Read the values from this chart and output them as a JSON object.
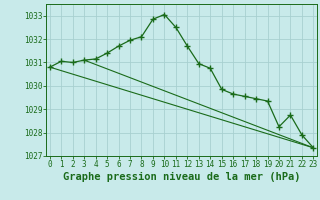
{
  "title": "Graphe pression niveau de la mer (hPa)",
  "background_color": "#c8eaea",
  "grid_color": "#a8d0d0",
  "line_color": "#1a6b1a",
  "ylim": [
    1027,
    1033.5
  ],
  "xlim": [
    -0.3,
    23.3
  ],
  "yticks": [
    1027,
    1028,
    1029,
    1030,
    1031,
    1032,
    1033
  ],
  "xticks": [
    0,
    1,
    2,
    3,
    4,
    5,
    6,
    7,
    8,
    9,
    10,
    11,
    12,
    13,
    14,
    15,
    16,
    17,
    18,
    19,
    20,
    21,
    22,
    23
  ],
  "series1_x": [
    0,
    1,
    2,
    3,
    4,
    5,
    6,
    7,
    8,
    9,
    10,
    11,
    12,
    13,
    14,
    15,
    16,
    17,
    18,
    19,
    20,
    21,
    22,
    23
  ],
  "series1_y": [
    1030.8,
    1031.05,
    1031.0,
    1031.1,
    1031.15,
    1031.4,
    1031.7,
    1031.95,
    1032.1,
    1032.85,
    1033.05,
    1032.5,
    1031.7,
    1030.95,
    1030.75,
    1029.85,
    1029.65,
    1029.55,
    1029.45,
    1029.35,
    1028.25,
    1028.75,
    1027.9,
    1027.35
  ],
  "line1_x": [
    0,
    23
  ],
  "line1_y": [
    1030.8,
    1027.35
  ],
  "line2_x": [
    3,
    23
  ],
  "line2_y": [
    1031.1,
    1027.35
  ],
  "tick_fontsize": 5.5,
  "label_fontsize": 7.5,
  "label_fontweight": "bold"
}
